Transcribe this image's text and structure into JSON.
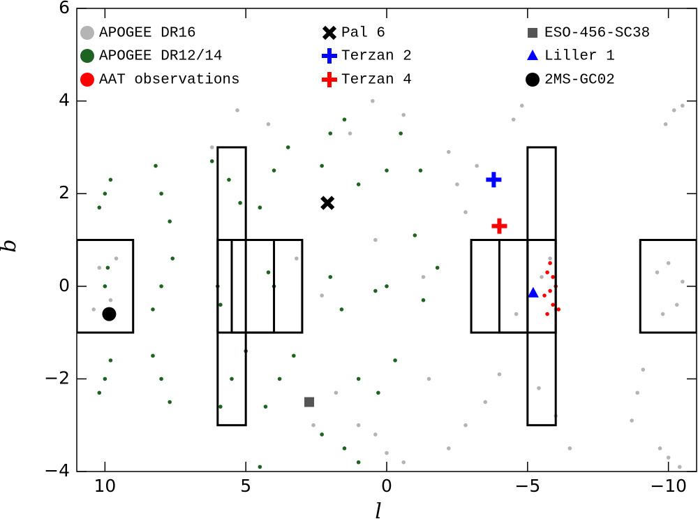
{
  "chart_data": {
    "type": "scatter",
    "x_label": "l",
    "y_label": "b",
    "xlim": [
      11,
      -11
    ],
    "ylim": [
      -4,
      6
    ],
    "xticks": [
      10,
      5,
      0,
      {
        "value": -5,
        "label": "−5"
      },
      {
        "value": -10,
        "label": "−10"
      }
    ],
    "yticks": [
      {
        "value": -4,
        "label": "−4"
      },
      {
        "value": -2,
        "label": "−2"
      },
      0,
      2,
      4,
      6
    ],
    "series": [
      {
        "name": "APOGEE DR16",
        "color": "#b4b4b4",
        "marker": "point",
        "x": [
          10.2,
          9.8,
          10.4,
          9.6,
          10,
          -9.6,
          -10.3,
          -10,
          -10.5,
          -9.8,
          -10.2,
          -9.9,
          -10.5,
          -8.9,
          -8.7,
          -9.1,
          -10,
          -10.4,
          -9.7,
          -4.8,
          -4.5,
          -2.5,
          -2.8,
          -3.2,
          -2.2,
          -5.5,
          -6,
          -4.6,
          -5.8,
          -3.5,
          -2.8,
          -4.0,
          -1.5,
          -2.2,
          -6,
          -6.5,
          -5.4,
          0,
          0.4,
          -0.6,
          1.0,
          1.8,
          2.6,
          0.5,
          -0.6,
          1.3,
          5.3,
          4.2,
          6.2,
          3.2,
          2.3,
          0.4,
          -1.3
        ],
        "y": [
          0.4,
          -0.3,
          -0.5,
          0.6,
          0,
          0.3,
          -0.4,
          0.5,
          0.1,
          -0.6,
          3.8,
          3.5,
          3.9,
          -2.3,
          -2.9,
          -1.8,
          -3.7,
          -3.9,
          -3.5,
          3.9,
          3.6,
          2.2,
          1.6,
          2.6,
          2.9,
          0.2,
          -0.5,
          -0.6,
          0.6,
          -2.5,
          -3.0,
          -1.9,
          -2.0,
          -3.5,
          -2.8,
          -3.5,
          -2.2,
          -3.6,
          -3.2,
          -3.8,
          -3.0,
          -2.3,
          -3.0,
          4.0,
          3.7,
          3.3,
          3.8,
          3.5,
          3.0,
          0.6,
          -0.2,
          1.0,
          0.2
        ]
      },
      {
        "name": "APOGEE DR12/14",
        "color": "#1e6420",
        "marker": "point",
        "x": [
          10,
          9.8,
          10.2,
          10,
          9.8,
          10.2,
          10,
          9.9,
          8,
          7.7,
          8.2,
          8,
          8.3,
          7.6,
          8,
          7.7,
          8.3,
          6,
          5.9,
          4,
          4.2,
          5.6,
          5.2,
          6.2,
          5.5,
          5.9,
          5,
          4,
          3.5,
          4.5,
          3.8,
          3.3,
          4.3,
          2,
          1.5,
          2.3,
          1,
          0,
          -0.5,
          -1.2,
          2,
          1.6,
          0,
          0.4,
          -1.3,
          -1.8,
          1,
          0.3,
          -0.3,
          1.5,
          1,
          2.3,
          4.5,
          -1.0
        ],
        "y": [
          2,
          2.3,
          1.7,
          -2,
          -1.6,
          -2.3,
          0,
          0.4,
          2,
          1.4,
          2.6,
          0,
          -0.5,
          0.6,
          -2,
          -2.5,
          -1.5,
          0,
          -0.4,
          0,
          0.3,
          2.3,
          1.8,
          2.7,
          -2.0,
          -2.6,
          -1.4,
          2.5,
          3.0,
          1.7,
          -2,
          -1.5,
          -2.6,
          3.3,
          3.6,
          2.6,
          2.2,
          2.5,
          3.3,
          2.5,
          0.2,
          -0.5,
          0,
          -0.1,
          -0.3,
          0.4,
          -2,
          -2.3,
          -1.6,
          -3.5,
          -3.8,
          -3.2,
          -3.9,
          1.1
        ]
      },
      {
        "name": "AAT observations",
        "color": "#ff0000",
        "marker": "point",
        "x": [
          -5.7,
          -5.8,
          -5.9,
          -5.6,
          -6.0,
          -5.8,
          -6.1,
          -5.7,
          -5.9
        ],
        "y": [
          0.3,
          -0.1,
          -0.4,
          -0.2,
          0.0,
          0.5,
          -0.5,
          -0.6,
          0.2
        ]
      },
      {
        "name": "Pal 6",
        "color": "#000000",
        "marker": "x",
        "x": [
          2.1
        ],
        "y": [
          1.8
        ]
      },
      {
        "name": "Terzan 2",
        "color": "#0000ff",
        "marker": "plus",
        "x": [
          -3.8
        ],
        "y": [
          2.3
        ]
      },
      {
        "name": "Terzan 4",
        "color": "#ff0000",
        "marker": "plus",
        "x": [
          -4.0
        ],
        "y": [
          1.3
        ]
      },
      {
        "name": "ESO-456-SC38",
        "color": "#555555",
        "marker": "square",
        "x": [
          2.75
        ],
        "y": [
          -2.5
        ]
      },
      {
        "name": "Liller 1",
        "color": "#0000ff",
        "marker": "triangle",
        "x": [
          -5.2
        ],
        "y": [
          -0.15
        ]
      },
      {
        "name": "2MS-GC02",
        "color": "#000000",
        "marker": "circle",
        "x": [
          9.85
        ],
        "y": [
          -0.6
        ]
      }
    ],
    "boxes": [
      {
        "l": [
          11,
          9
        ],
        "b": [
          -1,
          1
        ]
      },
      {
        "l": [
          6,
          5
        ],
        "b": [
          -3,
          3
        ]
      },
      {
        "l": [
          6,
          3
        ],
        "b": [
          -1,
          1
        ]
      },
      {
        "l": [
          5.5,
          4
        ],
        "b": [
          -1,
          1
        ]
      },
      {
        "l": [
          -3,
          -6
        ],
        "b": [
          -1,
          1
        ]
      },
      {
        "l": [
          -4,
          -5
        ],
        "b": [
          -1,
          1
        ]
      },
      {
        "l": [
          -5,
          -6
        ],
        "b": [
          -3,
          3
        ]
      },
      {
        "l": [
          -9,
          -11
        ],
        "b": [
          -1,
          1
        ]
      }
    ]
  }
}
